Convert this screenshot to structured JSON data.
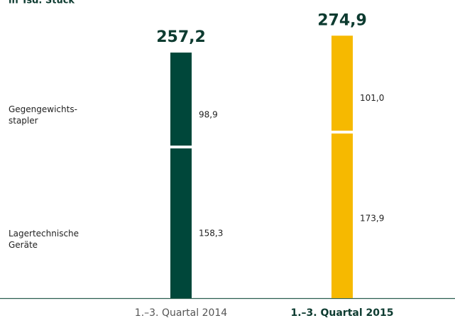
{
  "chart_data": {
    "type": "stacked_bar",
    "subtitle": "in Tsd. Stück",
    "categories": [
      "1.–3. Quartal 2014",
      "1.–3. Quartal 2015"
    ],
    "category_colors": [
      "#00473a",
      "#f6b900"
    ],
    "highlight_category": 1,
    "series": [
      {
        "name": "Lagertechnische\nGeräte",
        "values": [
          158.3,
          173.9
        ],
        "value_labels": [
          "158,3",
          "173,9"
        ]
      },
      {
        "name": "Gegengewichts-\nstapler",
        "values": [
          98.9,
          101.0
        ],
        "value_labels": [
          "98,9",
          "101,0"
        ]
      }
    ],
    "totals": [
      257.2,
      274.9
    ],
    "total_labels": [
      "257,2",
      "274,9"
    ]
  }
}
